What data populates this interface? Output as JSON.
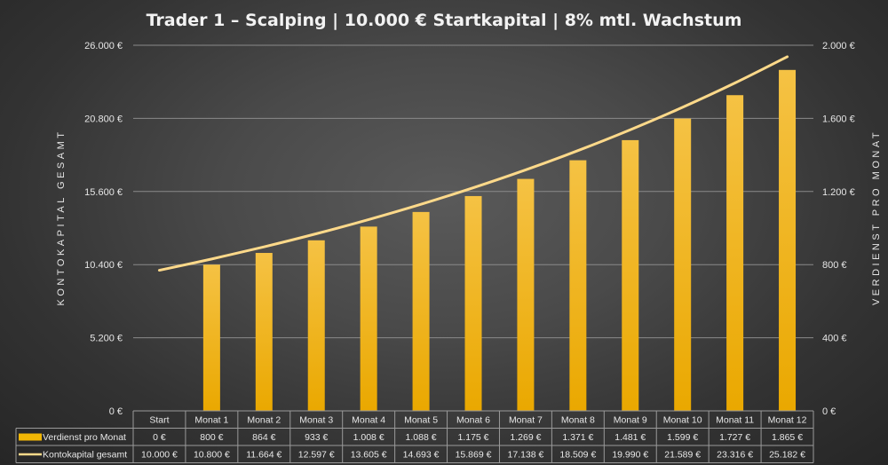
{
  "chart_data": {
    "type": "bar+line",
    "title": "Trader 1 – Scalping | 10.000 € Startkapital | 8% mtl. Wachstum",
    "categories": [
      "Start",
      "Monat 1",
      "Monat 2",
      "Monat 3",
      "Monat 4",
      "Monat 5",
      "Monat 6",
      "Monat 7",
      "Monat 8",
      "Monat 9",
      "Monat 10",
      "Monat 11",
      "Monat 12"
    ],
    "series": [
      {
        "name": "Verdienst pro Monat",
        "type": "bar",
        "axis": "right",
        "values": [
          0,
          800,
          864,
          933,
          1008,
          1088,
          1175,
          1269,
          1371,
          1481,
          1599,
          1727,
          1865
        ],
        "labels": [
          "0 €",
          "800 €",
          "864 €",
          "933 €",
          "1.008 €",
          "1.088 €",
          "1.175 €",
          "1.269 €",
          "1.371 €",
          "1.481 €",
          "1.599 €",
          "1.727 €",
          "1.865 €"
        ],
        "color": "#f2b705"
      },
      {
        "name": "Kontokapital gesamt",
        "type": "line",
        "axis": "left",
        "values": [
          10000,
          10800,
          11664,
          12597,
          13605,
          14693,
          15869,
          17138,
          18509,
          19990,
          21589,
          23316,
          25182
        ],
        "labels": [
          "10.000 €",
          "10.800 €",
          "11.664 €",
          "12.597 €",
          "13.605 €",
          "14.693 €",
          "15.869 €",
          "17.138 €",
          "18.509 €",
          "19.990 €",
          "21.589 €",
          "23.316 €",
          "25.182 €"
        ],
        "color": "#fdd98a"
      }
    ],
    "y_left": {
      "label": "KONTOKAPITAL GESAMT",
      "range": [
        0,
        26000
      ],
      "ticks": [
        0,
        5200,
        10400,
        15600,
        20800,
        26000
      ],
      "tick_labels": [
        "0 €",
        "5.200 €",
        "10.400 €",
        "15.600 €",
        "20.800 €",
        "26.000 €"
      ]
    },
    "y_right": {
      "label": "VERDIENST PRO MONAT",
      "range": [
        0,
        2000
      ],
      "ticks": [
        0,
        400,
        800,
        1200,
        1600,
        2000
      ],
      "tick_labels": [
        "0 €",
        "400 €",
        "800 €",
        "1.200 €",
        "1.600 €",
        "2.000 €"
      ]
    },
    "grid": true,
    "legend": "data-table"
  }
}
